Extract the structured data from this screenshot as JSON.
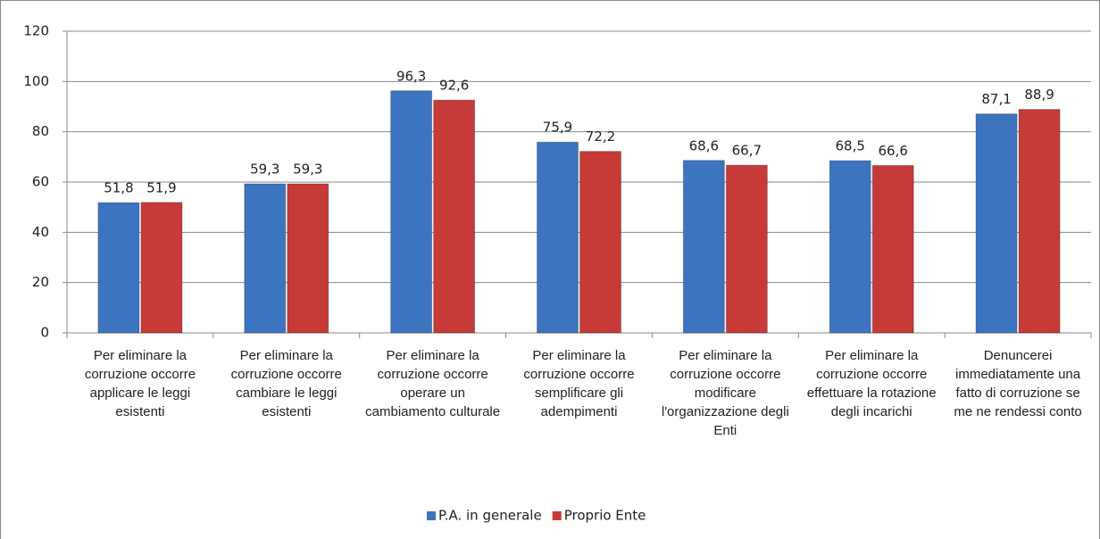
{
  "chart_data": {
    "type": "bar",
    "categories": [
      "Per eliminare la corruzione occorre applicare le leggi esistenti",
      "Per eliminare la corruzione occorre cambiare le leggi esistenti",
      "Per eliminare la corruzione occorre operare un cambiamento culturale",
      "Per eliminare la corruzione occorre semplificare gli adempimenti",
      "Per eliminare la corruzione occorre modificare l'organizzazione degli Enti",
      "Per eliminare la corruzione occorre effettuare la rotazione degli incarichi",
      "Denuncerei immediatamente una fatto di corruzione se me ne rendessi conto"
    ],
    "series": [
      {
        "name": "P.A. in generale",
        "color": "#3d74c0",
        "values": [
          51.8,
          59.3,
          96.3,
          75.9,
          68.6,
          68.5,
          87.1
        ],
        "value_labels": [
          "51,8",
          "59,3",
          "96,3",
          "75,9",
          "68,6",
          "68,5",
          "87,1"
        ]
      },
      {
        "name": "Proprio Ente",
        "color": "#c63a38",
        "values": [
          51.9,
          59.3,
          92.6,
          72.2,
          66.7,
          66.6,
          88.9
        ],
        "value_labels": [
          "51,9",
          "59,3",
          "92,6",
          "72,2",
          "66,7",
          "66,6",
          "88,9"
        ]
      }
    ],
    "ylim": [
      0,
      120
    ],
    "yticks": [
      0,
      20,
      40,
      60,
      80,
      100,
      120
    ],
    "grid": true,
    "legend": "bottom"
  }
}
